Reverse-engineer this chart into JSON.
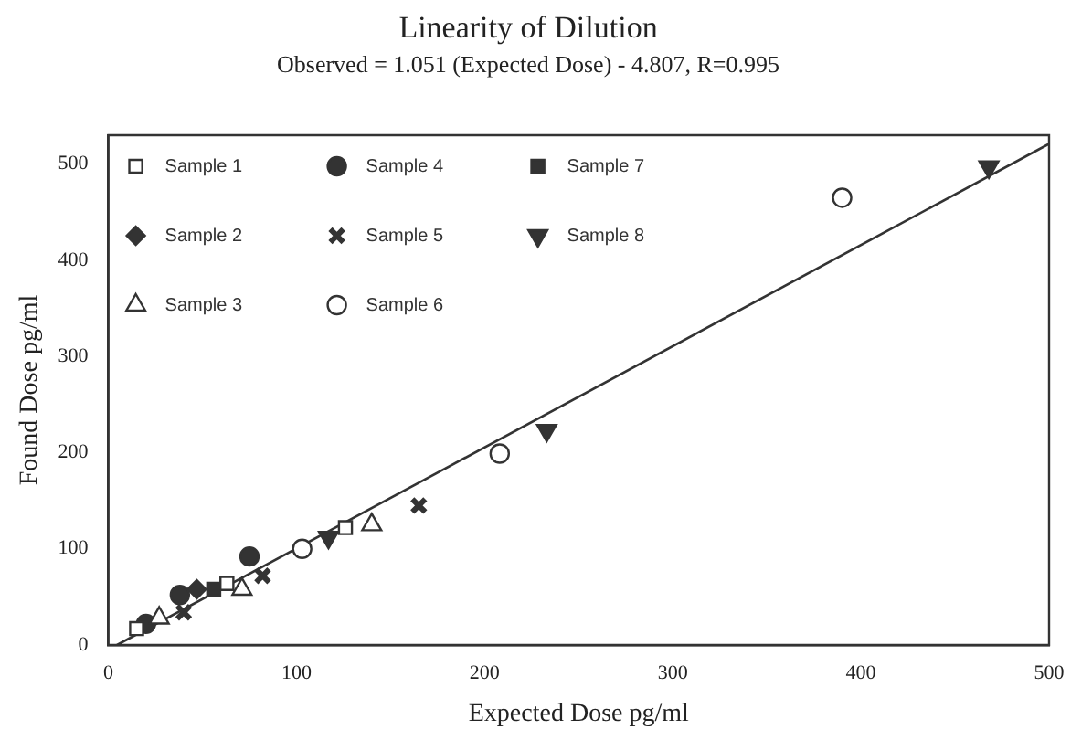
{
  "chart_data": {
    "type": "scatter",
    "title": "Linearity of Dilution",
    "subtitle": "Observed = 1.051 (Expected Dose) - 4.807, R=0.995",
    "xlabel": "Expected Dose pg/ml",
    "ylabel": "Found Dose pg/ml",
    "xlim": [
      0,
      500
    ],
    "ylim": [
      0,
      530
    ],
    "xticks": [
      0,
      100,
      200,
      300,
      400,
      500
    ],
    "yticks": [
      0,
      100,
      200,
      300,
      400,
      500
    ],
    "legend": "top left",
    "grid": false,
    "series": [
      {
        "name": "Sample 1",
        "color": "#333333",
        "marker": "square-open",
        "x": [
          15,
          63,
          126
        ],
        "values": [
          17,
          64,
          122
        ]
      },
      {
        "name": "Sample 2",
        "color": "#333333",
        "marker": "diamond",
        "x": [
          47
        ],
        "values": [
          58
        ]
      },
      {
        "name": "Sample 3",
        "color": "#333333",
        "marker": "triangle-open",
        "x": [
          27,
          71,
          140
        ],
        "values": [
          28,
          58,
          125
        ]
      },
      {
        "name": "Sample 4",
        "color": "#333333",
        "marker": "circle",
        "x": [
          20,
          38,
          75
        ],
        "values": [
          22,
          52,
          92
        ]
      },
      {
        "name": "Sample 5",
        "color": "#333333",
        "marker": "cross",
        "x": [
          40,
          82,
          165
        ],
        "values": [
          34,
          72,
          145
        ]
      },
      {
        "name": "Sample 6",
        "color": "#333333",
        "marker": "circle-open",
        "x": [
          103,
          208,
          390
        ],
        "values": [
          100,
          199,
          465
        ]
      },
      {
        "name": "Sample 7",
        "color": "#333333",
        "marker": "square",
        "x": [
          56
        ],
        "values": [
          58
        ]
      },
      {
        "name": "Sample 8",
        "color": "#333333",
        "marker": "triangle-down",
        "x": [
          117,
          233,
          468
        ],
        "values": [
          112,
          223,
          497
        ]
      },
      {
        "type": "line",
        "color": "#333333",
        "marker": "none",
        "x": [
          4.6,
          500
        ],
        "values": [
          0,
          521
        ]
      }
    ]
  }
}
